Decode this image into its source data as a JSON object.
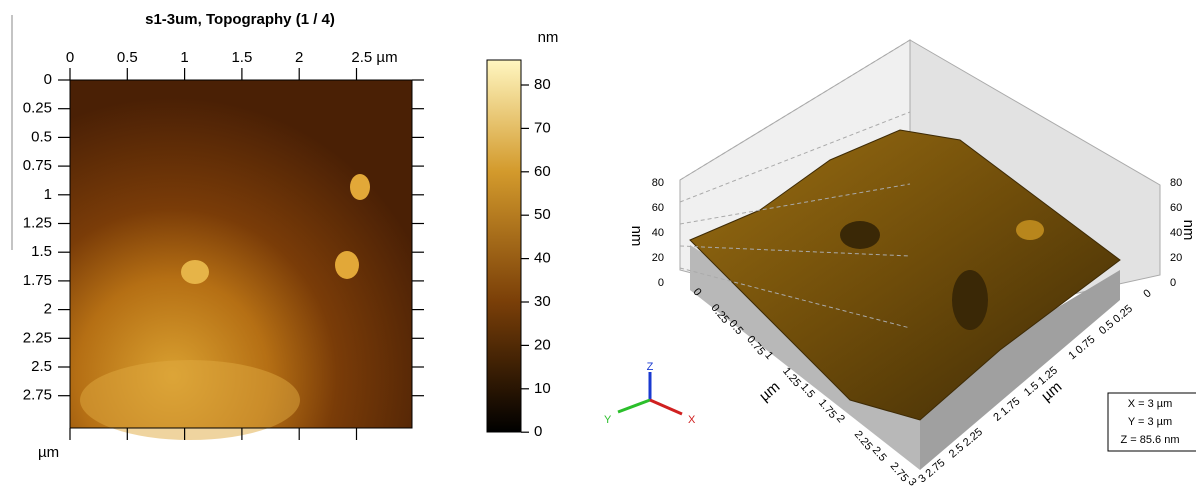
{
  "topography": {
    "title": "s1-3um, Topography (1 / 4)",
    "x_ticks": [
      "0",
      "0.5",
      "1",
      "1.5",
      "2",
      "2.5 µm"
    ],
    "y_ticks": [
      "0",
      "0.25",
      "0.5",
      "0.75",
      "1",
      "1.25",
      "1.5",
      "1.75",
      "2",
      "2.25",
      "2.5",
      "2.75"
    ],
    "axis_unit": "µm"
  },
  "colorbar": {
    "unit": "nm",
    "ticks": [
      "80",
      "70",
      "60",
      "50",
      "40",
      "30",
      "20",
      "10",
      "0"
    ]
  },
  "surface_3d": {
    "z_unit": "nm",
    "z_ticks": [
      "80",
      "60",
      "40",
      "20",
      "0"
    ],
    "plane_ticks": [
      "0",
      "0.25",
      "0.5",
      "0.75",
      "1",
      "1.25",
      "1.5",
      "1.75",
      "2",
      "2.25",
      "2.5",
      "2.75",
      "3"
    ],
    "x_unit": "µm",
    "y_unit": "µm",
    "axes": {
      "z": "Z",
      "y": "Y",
      "x": "X"
    },
    "info": [
      "X = 3 µm",
      "Y = 3 µm",
      "Z = 85.6 nm"
    ]
  }
}
